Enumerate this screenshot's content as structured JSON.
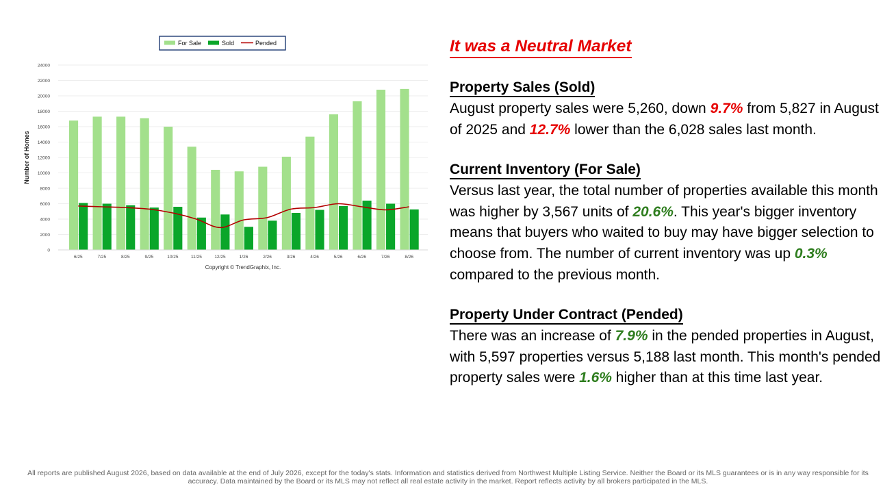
{
  "chart_data": {
    "type": "bar",
    "categories": [
      "6/25",
      "7/25",
      "8/25",
      "9/25",
      "10/25",
      "11/25",
      "12/25",
      "1/26",
      "2/26",
      "3/26",
      "4/26",
      "5/26",
      "6/26",
      "7/26",
      "8/26"
    ],
    "series": [
      {
        "name": "For Sale",
        "type": "bar",
        "color": "#a3e08c",
        "values": [
          16800,
          17300,
          17300,
          17100,
          16000,
          13400,
          10400,
          10200,
          10800,
          12100,
          14700,
          17600,
          19300,
          20800,
          20900
        ]
      },
      {
        "name": "Sold",
        "type": "bar",
        "color": "#0aa62a",
        "values": [
          6100,
          6000,
          5800,
          5500,
          5600,
          4200,
          4600,
          3000,
          3800,
          4800,
          5200,
          5700,
          6400,
          6000,
          5260
        ]
      },
      {
        "name": "Pended",
        "type": "line",
        "color": "#b30000",
        "values": [
          5700,
          5600,
          5500,
          5300,
          4800,
          4000,
          2900,
          3900,
          4200,
          5300,
          5500,
          6000,
          5600,
          5200,
          5600
        ]
      }
    ],
    "yticks": [
      "0",
      "2000",
      "4000",
      "6000",
      "8000",
      "10000",
      "12000",
      "14000",
      "16000",
      "18000",
      "20000",
      "22000",
      "24000"
    ],
    "ylim": [
      0,
      24000
    ],
    "ylabel": "Number of Homes",
    "xlabel": "",
    "legend": [
      "For Sale",
      "Sold",
      "Pended"
    ],
    "legend_position": "top-center",
    "grid": true,
    "copyright": "Copyright © TrendGraphix, Inc."
  },
  "headline": "It was a Neutral Market",
  "sold": {
    "title": "Property Sales (Sold)",
    "t1": "August property sales were 5,260, down ",
    "p1": "9.7%",
    "t2": " from 5,827 in August of 2025 and ",
    "p2": "12.7%",
    "t3": " lower than the 6,028 sales last month."
  },
  "inventory": {
    "title": "Current Inventory (For Sale)",
    "t1": "Versus last year, the total number of properties available this month was higher by 3,567 units of ",
    "p1": "20.6%",
    "t2": ". This year's bigger inventory means that buyers who waited to buy may have bigger selection to choose from. The number of current inventory was up ",
    "p2": "0.3%",
    "t3": " compared to the previous month."
  },
  "pended": {
    "title": "Property Under Contract (Pended)",
    "t1": "There was an increase of ",
    "p1": "7.9%",
    "t2": " in the pended properties in August, with 5,597 properties versus 5,188 last month. This month's pended property sales were ",
    "p2": "1.6%",
    "t3": " higher than at this time last year."
  },
  "footer": "All reports are published August 2026, based on data available at the end of July 2026, except for the today's stats. Information and statistics derived from Northwest Multiple Listing Service. Neither the Board or its MLS guarantees or is in any way responsible for its accuracy. Data maintained by the Board or its MLS may not reflect all real estate activity in the market. Report reflects activity by all brokers participated in the MLS."
}
